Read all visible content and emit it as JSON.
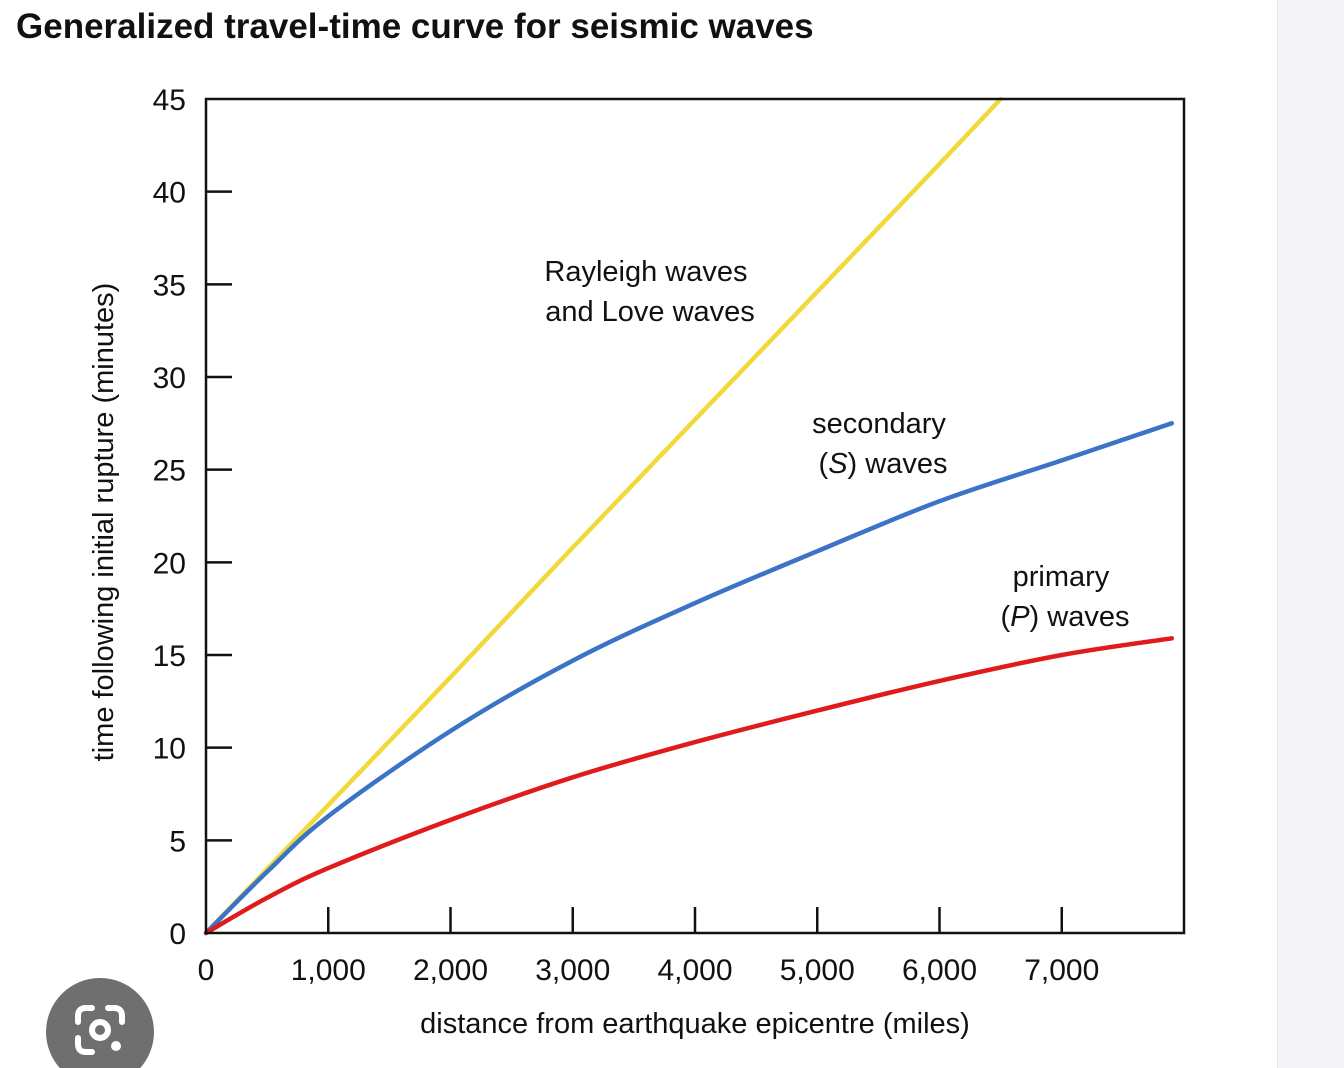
{
  "title": "Generalized travel-time curve for seismic waves",
  "chart_data": {
    "type": "line",
    "title": "Generalized travel-time curve for seismic waves",
    "xlabel": "distance from earthquake epicentre (miles)",
    "ylabel": "time following initial rupture (minutes)",
    "xlim": [
      0,
      8000
    ],
    "ylim": [
      0,
      45
    ],
    "x_ticks": [
      0,
      1000,
      2000,
      3000,
      4000,
      5000,
      6000,
      7000
    ],
    "x_tick_labels": [
      "0",
      "1,000",
      "2,000",
      "3,000",
      "4,000",
      "5,000",
      "6,000",
      "7,000"
    ],
    "y_ticks": [
      0,
      5,
      10,
      15,
      20,
      25,
      30,
      35,
      40,
      45
    ],
    "y_tick_labels": [
      "0",
      "5",
      "10",
      "15",
      "20",
      "25",
      "30",
      "35",
      "40",
      "45"
    ],
    "grid": false,
    "legend": "none",
    "series": [
      {
        "label_lines": [
          "Rayleigh waves",
          "and Love waves"
        ],
        "color": "#f2d93b",
        "x": [
          0,
          1000,
          2000,
          3000,
          4000,
          5000,
          6000,
          6500
        ],
        "y": [
          0,
          6.9,
          13.8,
          20.8,
          27.7,
          34.6,
          41.5,
          45
        ]
      },
      {
        "label_lines": [
          "secondary",
          "(S) waves"
        ],
        "label_italic": "S",
        "color": "#3b73c6",
        "x": [
          0,
          500,
          1000,
          2000,
          3000,
          4000,
          5000,
          6000,
          7000,
          7900
        ],
        "y": [
          0,
          3.3,
          6.3,
          10.9,
          14.7,
          17.8,
          20.6,
          23.3,
          25.5,
          27.5
        ]
      },
      {
        "label_lines": [
          "primary",
          "(P) waves"
        ],
        "label_italic": "P",
        "color": "#e01b1b",
        "x": [
          0,
          500,
          1000,
          2000,
          3000,
          4000,
          5000,
          6000,
          7000,
          7900
        ],
        "y": [
          0,
          1.9,
          3.5,
          6.1,
          8.4,
          10.3,
          12.0,
          13.6,
          15.0,
          15.9
        ]
      }
    ]
  },
  "icons": {
    "lens": "google-lens-icon"
  }
}
